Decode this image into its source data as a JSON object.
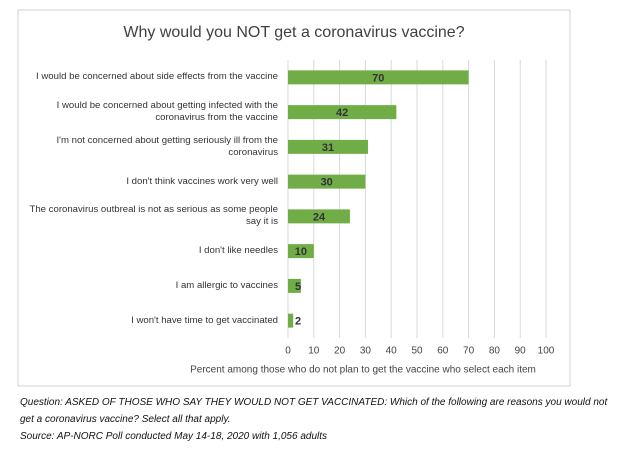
{
  "chart_data": {
    "type": "bar",
    "orientation": "horizontal",
    "title": "Why would you NOT get a coronavirus vaccine?",
    "categories": [
      "I would be concerned about side effects from the vaccine",
      "I would be concerned about getting infected with the coronavirus from the vaccine",
      "I'm not concerned about getting seriously ill from the coronavirus",
      "I don't think vaccines work very well",
      "The coronavirus outbreal is not as serious as some people say it is",
      "I don't like needles",
      "I am allergic to vaccines",
      "I won't have time to get vaccinated"
    ],
    "values": [
      70,
      42,
      31,
      30,
      24,
      10,
      5,
      2
    ],
    "color": "#70ad47",
    "xlim": [
      0,
      100
    ],
    "xticks": [
      0,
      10,
      20,
      30,
      40,
      50,
      60,
      70,
      80,
      90,
      100
    ],
    "xlabel": "Percent among those who do not plan to get the vaccine who select each item",
    "grid": true
  },
  "notes": [
    "Question: ASKED OF THOSE WHO SAY THEY WOULD NOT GET VACCINATED: Which of the following are reasons you would not get a coronavirus vaccine? Select all that apply.",
    "Source: AP-NORC Poll conducted May 14-18, 2020 with 1,056 adults"
  ]
}
